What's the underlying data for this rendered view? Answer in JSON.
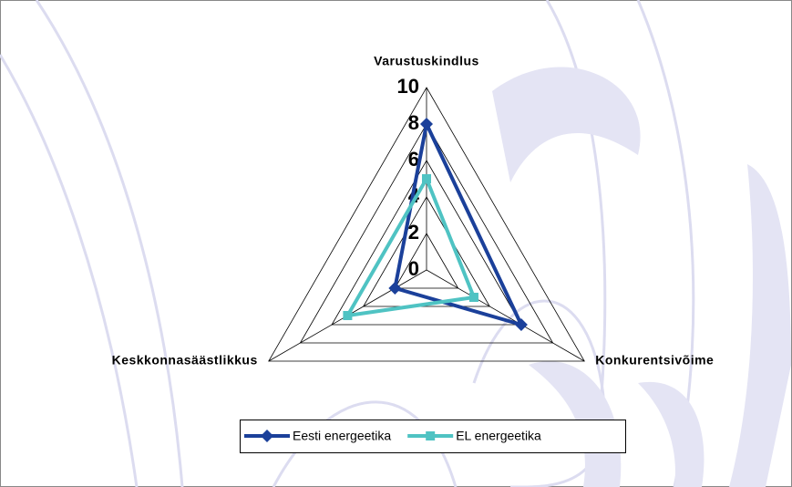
{
  "chart_data": {
    "type": "radar",
    "categories": [
      "Varustuskindlus",
      "Konkurentsivõime",
      "Keskkonnasäästlikkus"
    ],
    "series": [
      {
        "name": "Eesti energeetika",
        "color": "#1b409a",
        "marker": "diamond",
        "values": [
          8,
          6,
          2
        ]
      },
      {
        "name": "EL energeetika",
        "color": "#4fc3c3",
        "marker": "square",
        "values": [
          5,
          3,
          5
        ]
      }
    ],
    "rlim": [
      0,
      10
    ],
    "rticks": [
      0,
      2,
      4,
      6,
      8,
      10
    ],
    "grid": true,
    "legend": "bottom"
  }
}
